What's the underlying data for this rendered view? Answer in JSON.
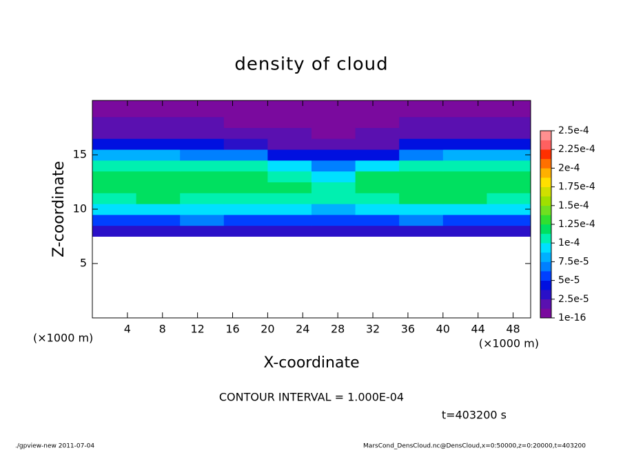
{
  "chart_data": {
    "type": "heatmap",
    "title": "density of cloud",
    "xlabel": "X-coordinate",
    "ylabel": "Z-coordinate",
    "x_unit_left": "(×1000 m)",
    "x_unit_right": "(×1000 m)",
    "annotations": [
      "CONTOUR INTERVAL = 1.000E-04",
      "t=403200 s",
      "./gpview-new  2011-07-04",
      "MarsCond_DensCloud.nc@DensCloud,x=0:50000,z=0:20000,t=403200"
    ],
    "xlim": [
      0,
      50
    ],
    "ylim": [
      0,
      20
    ],
    "xticks": [
      4,
      8,
      12,
      16,
      20,
      24,
      28,
      32,
      36,
      40,
      44,
      48
    ],
    "yticks": [
      5,
      10,
      15
    ],
    "x": [
      2.5,
      7.5,
      12.5,
      17.5,
      22.5,
      27.5,
      32.5,
      37.5,
      42.5,
      47.5
    ],
    "z": [
      8,
      9,
      10,
      11,
      12,
      13,
      14,
      15,
      16,
      17,
      18,
      19,
      20
    ],
    "values": [
      [
        3.5e-05,
        3e-05,
        3e-05,
        3.5e-05,
        3e-05,
        3e-05,
        3e-05,
        3.5e-05,
        3e-05,
        3.5e-05
      ],
      [
        6e-05,
        6e-05,
        6.5e-05,
        6e-05,
        6e-05,
        6e-05,
        6e-05,
        6.5e-05,
        6e-05,
        6e-05
      ],
      [
        9e-05,
        9e-05,
        9.5e-05,
        9e-05,
        9e-05,
        8.5e-05,
        9e-05,
        9.5e-05,
        9e-05,
        9e-05
      ],
      [
        0.00011,
        0.000115,
        0.00011,
        0.00011,
        0.000105,
        0.000105,
        0.00011,
        0.000115,
        0.000115,
        0.00011
      ],
      [
        0.00012,
        0.000125,
        0.000125,
        0.00012,
        0.000115,
        0.00011,
        0.00012,
        0.000125,
        0.000125,
        0.00012
      ],
      [
        0.00012,
        0.000125,
        0.000125,
        0.00012,
        0.00011,
        0.0001,
        0.000115,
        0.000125,
        0.000125,
        0.00012
      ],
      [
        0.00011,
        0.00011,
        0.00011,
        0.000105,
        9e-05,
        7e-05,
        9e-05,
        0.00011,
        0.00011,
        0.00011
      ],
      [
        8e-05,
        8e-05,
        7.5e-05,
        7e-05,
        5e-05,
        4e-05,
        5e-05,
        7.5e-05,
        8e-05,
        8e-05
      ],
      [
        4.5e-05,
        4.5e-05,
        4e-05,
        3.5e-05,
        2.5e-05,
        2e-05,
        2.5e-05,
        4e-05,
        4.5e-05,
        4.5e-05
      ],
      [
        2.5e-05,
        2.5e-05,
        2e-05,
        2e-05,
        1.5e-05,
        1e-05,
        1.5e-05,
        2e-05,
        2.5e-05,
        2.5e-05
      ],
      [
        1.5e-05,
        1.5e-05,
        1.5e-05,
        1e-05,
        1e-05,
        5e-06,
        1e-05,
        1.5e-05,
        1.5e-05,
        1.5e-05
      ],
      [
        1e-05,
        1e-05,
        1e-05,
        5e-06,
        5e-06,
        2e-06,
        5e-06,
        1e-05,
        1e-05,
        1e-05
      ],
      [
        5e-06,
        5e-06,
        5e-06,
        3e-06,
        2e-06,
        1e-06,
        2e-06,
        5e-06,
        5e-06,
        5e-06
      ]
    ],
    "colors": [
      "#7a0a9e",
      "#5a10b0",
      "#2a10c8",
      "#0010e0",
      "#0040ff",
      "#0080ff",
      "#00b0ff",
      "#00e0ff",
      "#00f0b0",
      "#00e060",
      "#30e030",
      "#70e020",
      "#a0e000",
      "#d0e000",
      "#ffe000",
      "#ffb000",
      "#ff7000",
      "#ff3000",
      "#ff6060",
      "#ff9090"
    ],
    "clim": [
      1e-16,
      0.00025
    ],
    "cticks": [
      {
        "value": 1e-16,
        "label": "1e-16"
      },
      {
        "value": 2.5e-05,
        "label": "2.5e-5"
      },
      {
        "value": 5e-05,
        "label": "5e-5"
      },
      {
        "value": 7.5e-05,
        "label": "7.5e-5"
      },
      {
        "value": 0.0001,
        "label": "1e-4"
      },
      {
        "value": 0.000125,
        "label": "1.25e-4"
      },
      {
        "value": 0.00015,
        "label": "1.5e-4"
      },
      {
        "value": 0.000175,
        "label": "1.75e-4"
      },
      {
        "value": 0.0002,
        "label": "2e-4"
      },
      {
        "value": 0.000225,
        "label": "2.25e-4"
      },
      {
        "value": 0.00025,
        "label": "2.5e-4"
      }
    ]
  }
}
